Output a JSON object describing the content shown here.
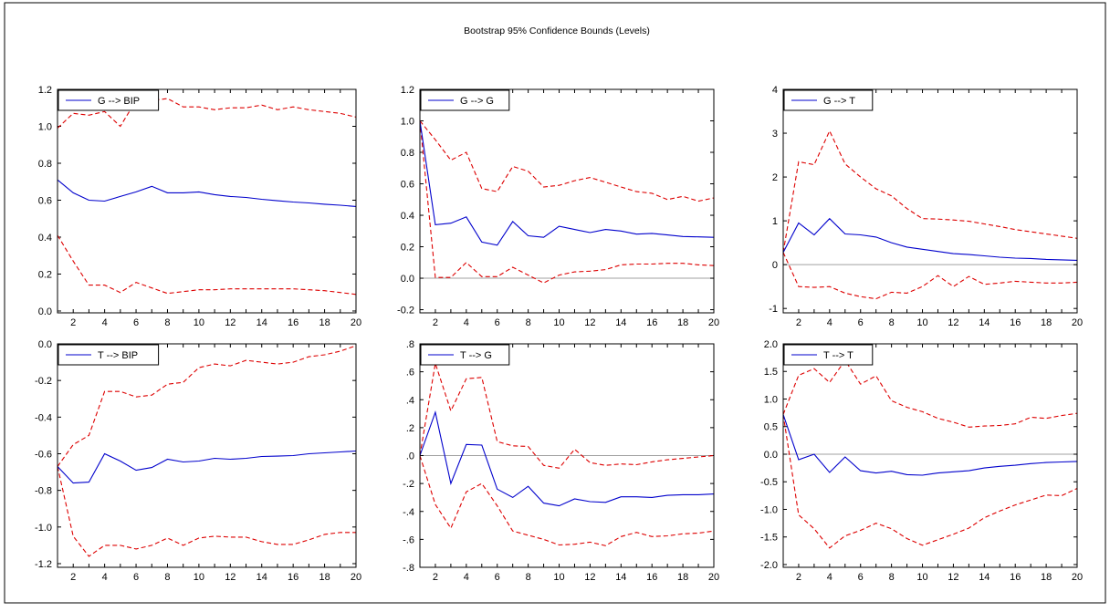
{
  "title": "Bootstrap 95% Confidence Bounds (Levels)",
  "colors": {
    "response": "#0000cc",
    "bounds": "#dd0000",
    "zero": "#a0a0a0",
    "frame": "#000000"
  },
  "chart_data": [
    {
      "type": "line",
      "legend": "G --> BIP",
      "legend_position": "top-left",
      "xlim": [
        1,
        20
      ],
      "ylim": [
        -0.01,
        1.2
      ],
      "yticks": [
        0.0,
        0.2,
        0.4,
        0.6,
        0.8,
        1.0,
        1.2
      ],
      "ytick_labels": [
        "0.0",
        "0.2",
        "0.4",
        "0.6",
        "0.8",
        "1.0",
        "1.2"
      ],
      "xticks": [
        2,
        4,
        6,
        8,
        10,
        12,
        14,
        16,
        18,
        20
      ],
      "zero_line": false,
      "x": [
        1,
        2,
        3,
        4,
        5,
        6,
        7,
        8,
        9,
        10,
        11,
        12,
        13,
        14,
        15,
        16,
        17,
        18,
        19,
        20
      ],
      "response": [
        0.71,
        0.64,
        0.6,
        0.595,
        0.62,
        0.645,
        0.675,
        0.64,
        0.64,
        0.645,
        0.63,
        0.62,
        0.615,
        0.605,
        0.597,
        0.59,
        0.585,
        0.578,
        0.573,
        0.566
      ],
      "upper": [
        0.99,
        1.07,
        1.06,
        1.08,
        1.0,
        1.14,
        1.14,
        1.15,
        1.105,
        1.105,
        1.09,
        1.1,
        1.1,
        1.115,
        1.09,
        1.105,
        1.09,
        1.08,
        1.07,
        1.05
      ],
      "lower": [
        0.41,
        0.27,
        0.14,
        0.14,
        0.1,
        0.155,
        0.125,
        0.095,
        0.105,
        0.115,
        0.115,
        0.12,
        0.12,
        0.12,
        0.12,
        0.12,
        0.115,
        0.11,
        0.1,
        0.09
      ]
    },
    {
      "type": "line",
      "legend": "G --> G",
      "legend_position": "top-left",
      "xlim": [
        1,
        20
      ],
      "ylim": [
        -0.22,
        1.2
      ],
      "yticks": [
        -0.2,
        0.0,
        0.2,
        0.4,
        0.6,
        0.8,
        1.0,
        1.2
      ],
      "ytick_labels": [
        "-0.2",
        "0.0",
        "0.2",
        "0.4",
        "0.6",
        "0.8",
        "1.0",
        "1.2"
      ],
      "xticks": [
        2,
        4,
        6,
        8,
        10,
        12,
        14,
        16,
        18,
        20
      ],
      "zero_line": true,
      "x": [
        1,
        2,
        3,
        4,
        5,
        6,
        7,
        8,
        9,
        10,
        11,
        12,
        13,
        14,
        15,
        16,
        17,
        18,
        19,
        20
      ],
      "response": [
        1.0,
        0.34,
        0.35,
        0.39,
        0.23,
        0.21,
        0.36,
        0.27,
        0.26,
        0.33,
        0.31,
        0.29,
        0.31,
        0.3,
        0.28,
        0.285,
        0.275,
        0.265,
        0.263,
        0.26
      ],
      "upper": [
        1.0,
        0.88,
        0.75,
        0.8,
        0.57,
        0.55,
        0.71,
        0.68,
        0.58,
        0.59,
        0.62,
        0.64,
        0.61,
        0.58,
        0.55,
        0.54,
        0.5,
        0.52,
        0.49,
        0.51
      ],
      "lower": [
        1.0,
        0.005,
        0.005,
        0.1,
        0.01,
        0.01,
        0.07,
        0.02,
        -0.03,
        0.02,
        0.04,
        0.045,
        0.055,
        0.085,
        0.09,
        0.09,
        0.095,
        0.095,
        0.085,
        0.08
      ]
    },
    {
      "type": "line",
      "legend": "G --> T",
      "legend_position": "top-left",
      "xlim": [
        1,
        20
      ],
      "ylim": [
        -1.1,
        4
      ],
      "yticks": [
        -1,
        0,
        1,
        2,
        3,
        4
      ],
      "ytick_labels": [
        "-1",
        "0",
        "1",
        "2",
        "3",
        "4"
      ],
      "xticks": [
        2,
        4,
        6,
        8,
        10,
        12,
        14,
        16,
        18,
        20
      ],
      "zero_line": true,
      "x": [
        1,
        2,
        3,
        4,
        5,
        6,
        7,
        8,
        9,
        10,
        11,
        12,
        13,
        14,
        15,
        16,
        17,
        18,
        19,
        20
      ],
      "response": [
        0.28,
        0.95,
        0.68,
        1.05,
        0.7,
        0.68,
        0.63,
        0.5,
        0.4,
        0.35,
        0.3,
        0.25,
        0.23,
        0.2,
        0.17,
        0.15,
        0.14,
        0.12,
        0.11,
        0.1
      ],
      "upper": [
        0.28,
        2.35,
        2.28,
        3.05,
        2.3,
        2.0,
        1.73,
        1.57,
        1.28,
        1.05,
        1.04,
        1.02,
        0.99,
        0.93,
        0.87,
        0.8,
        0.75,
        0.7,
        0.65,
        0.6
      ],
      "lower": [
        0.28,
        -0.5,
        -0.52,
        -0.5,
        -0.65,
        -0.73,
        -0.78,
        -0.63,
        -0.65,
        -0.5,
        -0.25,
        -0.5,
        -0.27,
        -0.45,
        -0.42,
        -0.38,
        -0.4,
        -0.42,
        -0.42,
        -0.4
      ]
    },
    {
      "type": "line",
      "legend": "T --> BIP",
      "legend_position": "top-left",
      "xlim": [
        1,
        20
      ],
      "ylim": [
        -1.22,
        0.0
      ],
      "yticks": [
        -1.2,
        -1.0,
        -0.8,
        -0.6,
        -0.4,
        -0.2,
        0.0
      ],
      "ytick_labels": [
        "-1.2",
        "-1.0",
        "-0.8",
        "-0.6",
        "-0.4",
        "-0.2",
        "0.0"
      ],
      "xticks": [
        2,
        4,
        6,
        8,
        10,
        12,
        14,
        16,
        18,
        20
      ],
      "zero_line": false,
      "x": [
        1,
        2,
        3,
        4,
        5,
        6,
        7,
        8,
        9,
        10,
        11,
        12,
        13,
        14,
        15,
        16,
        17,
        18,
        19,
        20
      ],
      "response": [
        -0.67,
        -0.76,
        -0.755,
        -0.6,
        -0.64,
        -0.69,
        -0.675,
        -0.63,
        -0.645,
        -0.64,
        -0.625,
        -0.63,
        -0.625,
        -0.615,
        -0.613,
        -0.61,
        -0.6,
        -0.595,
        -0.59,
        -0.585
      ],
      "upper": [
        -0.67,
        -0.55,
        -0.5,
        -0.26,
        -0.26,
        -0.29,
        -0.28,
        -0.22,
        -0.21,
        -0.13,
        -0.11,
        -0.12,
        -0.09,
        -0.1,
        -0.11,
        -0.1,
        -0.07,
        -0.06,
        -0.04,
        -0.01
      ],
      "lower": [
        -0.67,
        -1.05,
        -1.16,
        -1.1,
        -1.1,
        -1.12,
        -1.1,
        -1.06,
        -1.1,
        -1.06,
        -1.05,
        -1.055,
        -1.055,
        -1.08,
        -1.095,
        -1.095,
        -1.07,
        -1.04,
        -1.03,
        -1.03
      ]
    },
    {
      "type": "line",
      "legend": "T --> G",
      "legend_position": "top-left",
      "xlim": [
        1,
        20
      ],
      "ylim": [
        -0.8,
        0.8
      ],
      "yticks": [
        -0.8,
        -0.6,
        -0.4,
        -0.2,
        0.0,
        0.2,
        0.4,
        0.6,
        0.8
      ],
      "ytick_labels": [
        "-.8",
        "-.6",
        "-.4",
        "-.2",
        ".0",
        ".2",
        ".4",
        ".6",
        ".8"
      ],
      "xticks": [
        2,
        4,
        6,
        8,
        10,
        12,
        14,
        16,
        18,
        20
      ],
      "zero_line": true,
      "x": [
        1,
        2,
        3,
        4,
        5,
        6,
        7,
        8,
        9,
        10,
        11,
        12,
        13,
        14,
        15,
        16,
        17,
        18,
        19,
        20
      ],
      "response": [
        0.0,
        0.31,
        -0.2,
        0.08,
        0.075,
        -0.24,
        -0.3,
        -0.22,
        -0.34,
        -0.36,
        -0.31,
        -0.33,
        -0.335,
        -0.295,
        -0.295,
        -0.3,
        -0.285,
        -0.28,
        -0.28,
        -0.275
      ],
      "upper": [
        0.0,
        0.66,
        0.32,
        0.55,
        0.56,
        0.1,
        0.07,
        0.065,
        -0.07,
        -0.09,
        0.045,
        -0.05,
        -0.07,
        -0.06,
        -0.065,
        -0.045,
        -0.03,
        -0.02,
        -0.01,
        0.0
      ],
      "lower": [
        0.0,
        -0.35,
        -0.52,
        -0.26,
        -0.2,
        -0.36,
        -0.54,
        -0.57,
        -0.6,
        -0.64,
        -0.635,
        -0.62,
        -0.645,
        -0.58,
        -0.55,
        -0.58,
        -0.575,
        -0.56,
        -0.555,
        -0.54
      ]
    },
    {
      "type": "line",
      "legend": "T --> T",
      "legend_position": "top-left",
      "xlim": [
        1,
        20
      ],
      "ylim": [
        -2.05,
        2.0
      ],
      "yticks": [
        -2.0,
        -1.5,
        -1.0,
        -0.5,
        0.0,
        0.5,
        1.0,
        1.5,
        2.0
      ],
      "ytick_labels": [
        "-2.0",
        "-1.5",
        "-1.0",
        "-0.5",
        "0.0",
        "0.5",
        "1.0",
        "1.5",
        "2.0"
      ],
      "xticks": [
        2,
        4,
        6,
        8,
        10,
        12,
        14,
        16,
        18,
        20
      ],
      "zero_line": true,
      "x": [
        1,
        2,
        3,
        4,
        5,
        6,
        7,
        8,
        9,
        10,
        11,
        12,
        13,
        14,
        15,
        16,
        17,
        18,
        19,
        20
      ],
      "response": [
        0.72,
        -0.1,
        0.0,
        -0.33,
        -0.05,
        -0.3,
        -0.34,
        -0.31,
        -0.37,
        -0.38,
        -0.34,
        -0.32,
        -0.3,
        -0.25,
        -0.22,
        -0.2,
        -0.17,
        -0.15,
        -0.14,
        -0.13
      ],
      "upper": [
        0.72,
        1.43,
        1.55,
        1.3,
        1.7,
        1.27,
        1.42,
        0.97,
        0.85,
        0.77,
        0.65,
        0.58,
        0.49,
        0.51,
        0.52,
        0.55,
        0.67,
        0.65,
        0.7,
        0.74
      ],
      "lower": [
        0.72,
        -1.1,
        -1.35,
        -1.7,
        -1.48,
        -1.38,
        -1.25,
        -1.35,
        -1.53,
        -1.65,
        -1.55,
        -1.45,
        -1.34,
        -1.15,
        -1.03,
        -0.92,
        -0.83,
        -0.74,
        -0.75,
        -0.62
      ]
    }
  ]
}
